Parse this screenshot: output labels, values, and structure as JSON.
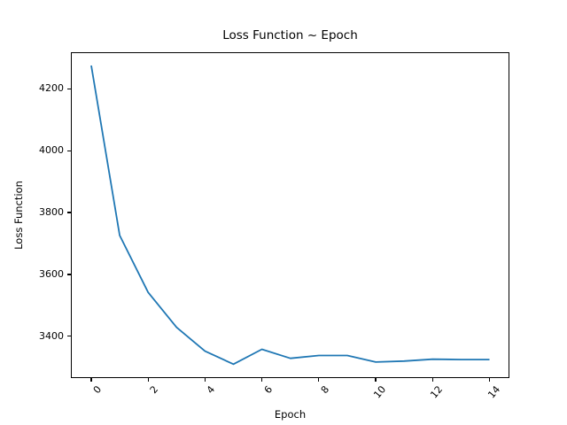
{
  "chart_data": {
    "type": "line",
    "title": "Loss Function ~ Epoch",
    "xlabel": "Epoch",
    "ylabel": "Loss Function",
    "x": [
      0,
      1,
      2,
      3,
      4,
      5,
      6,
      7,
      8,
      9,
      10,
      11,
      12,
      13,
      14
    ],
    "y": [
      4275,
      3726,
      3542,
      3429,
      3352,
      3310,
      3358,
      3329,
      3338,
      3338,
      3317,
      3320,
      3326,
      3325,
      3325
    ],
    "series_name": "loss",
    "x_ticks": [
      0,
      2,
      4,
      6,
      8,
      10,
      12,
      14
    ],
    "y_ticks": [
      3400,
      3600,
      3800,
      4000,
      4200
    ],
    "xlim": [
      -0.7,
      14.7
    ],
    "ylim": [
      3266,
      4317
    ],
    "x_tick_rotation_deg": 50,
    "grid": false,
    "legend_position": "none",
    "line_color": "#1f77b4",
    "background_color": "#ffffff",
    "axis_color": "#000000"
  }
}
